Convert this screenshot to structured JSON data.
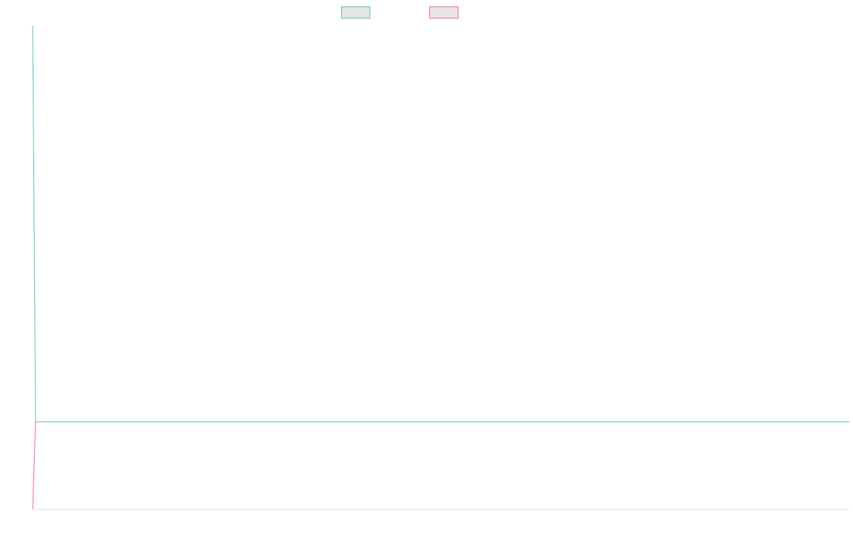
{
  "legend": {
    "items": [
      {
        "name": "",
        "color": "#4bc0c0"
      },
      {
        "name": "",
        "color": "#ff6384"
      }
    ]
  },
  "chart_data": {
    "type": "line",
    "title": "",
    "xlabel": "",
    "ylabel": "",
    "grid": false,
    "legend_position": "top",
    "x_domain": [
      0,
      1
    ],
    "y_domain": [
      -1,
      0
    ],
    "series": [
      {
        "color": "#4bc0c0",
        "points": [
          [
            0.0,
            0.0
          ],
          [
            0.0035,
            -0.82
          ],
          [
            1.0,
            -0.82
          ]
        ]
      },
      {
        "color": "#ff6384",
        "points": [
          [
            0.0,
            -1.0
          ],
          [
            0.0035,
            -0.82
          ]
        ]
      }
    ],
    "colors": {
      "series_1": "#4bc0c0",
      "series_2": "#ff6384",
      "axis": "#e0e0e0",
      "legend_fill": "#e6e6e6"
    }
  }
}
